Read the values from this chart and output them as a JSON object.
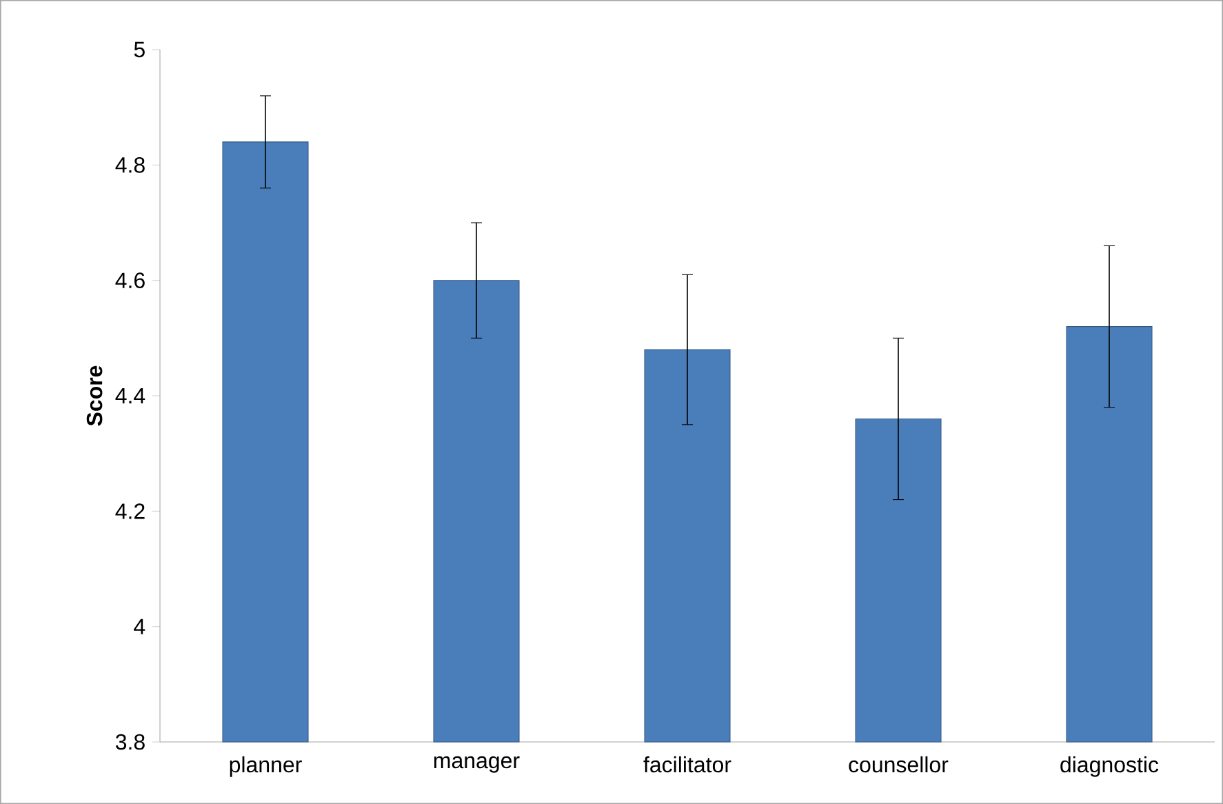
{
  "chart_data": {
    "type": "bar",
    "ylabel": "Score",
    "categories": [
      "planner",
      "manager",
      "facilitator",
      "counsellor",
      "diagnostic"
    ],
    "values": [
      4.84,
      4.6,
      4.48,
      4.36,
      4.52
    ],
    "errors": [
      0.08,
      0.1,
      0.13,
      0.14,
      0.14
    ],
    "color": "#4a7ebb",
    "ylim": [
      3.8,
      5
    ],
    "yticks": [
      3.8,
      4,
      4.2,
      4.4,
      4.6,
      4.8,
      5
    ]
  }
}
